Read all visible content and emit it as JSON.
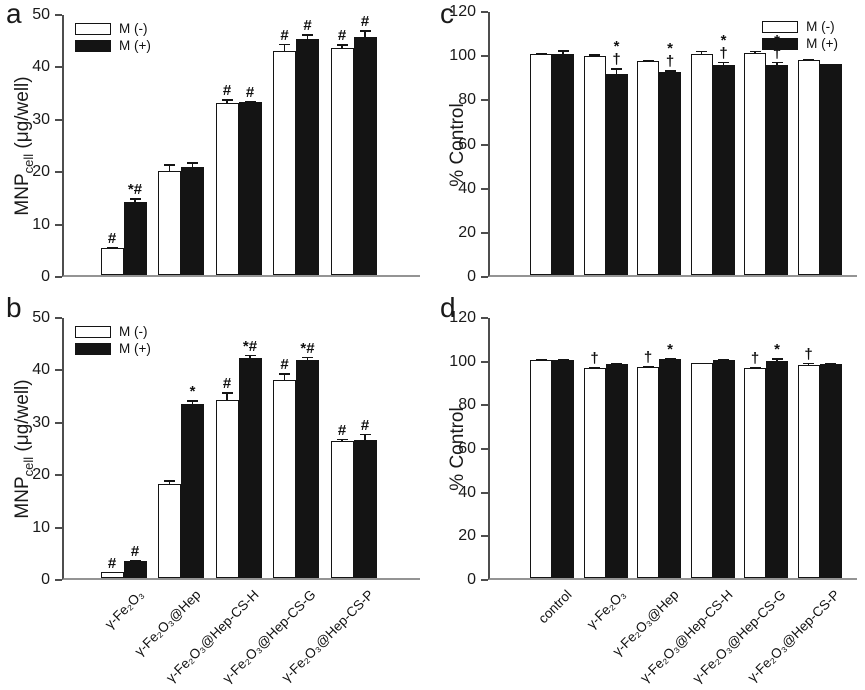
{
  "figure": {
    "background": "#ffffff"
  },
  "colors": {
    "bar_fill_neg": "#ffffff",
    "bar_fill_pos": "#141414",
    "bar_border": "#141414",
    "axis": "#4d4d4d",
    "baseline": "#949494",
    "text": "#1a1a1a"
  },
  "legend": {
    "items": [
      {
        "label": "M (-)",
        "style": "neg"
      },
      {
        "label": "M (+)",
        "style": "pos"
      }
    ]
  },
  "chart_data": [
    {
      "id": "a",
      "panel_label": "a",
      "type": "bar",
      "ylabel_pre": "MNP",
      "ylabel_sub": "cell",
      "ylabel_post": " (μg/well)",
      "ylim": [
        0,
        50
      ],
      "yticks": [
        0,
        10,
        20,
        30,
        40,
        50
      ],
      "grid": false,
      "legend_position": "top-left",
      "show_xlabels": false,
      "categories": [
        "γ-Fe₂O₃",
        "γ-Fe₂O₃@Hep",
        "γ-Fe₂O₃@Hep-CS-H",
        "γ-Fe₂O₃@Hep-CS-G",
        "γ-Fe₂O₃@Hep-CS-P"
      ],
      "series": [
        {
          "name": "M (-)",
          "style": "neg",
          "values": [
            5.2,
            19.8,
            32.8,
            42.8,
            43.3
          ],
          "errors": [
            0.4,
            1.5,
            1.0,
            1.5,
            0.9
          ],
          "annotations": [
            "#",
            "",
            "#",
            "#",
            "#"
          ]
        },
        {
          "name": "M (+)",
          "style": "pos",
          "values": [
            14.0,
            20.7,
            33.0,
            45.0,
            45.5
          ],
          "errors": [
            0.8,
            1.0,
            0.4,
            1.2,
            1.4
          ],
          "annotations": [
            "*#",
            "",
            "#",
            "#",
            "#"
          ]
        }
      ]
    },
    {
      "id": "b",
      "panel_label": "b",
      "type": "bar",
      "ylabel_pre": "MNP",
      "ylabel_sub": "cell",
      "ylabel_post": " (μg/well)",
      "ylim": [
        0,
        50
      ],
      "yticks": [
        0,
        10,
        20,
        30,
        40,
        50
      ],
      "grid": false,
      "legend_position": "top-left",
      "show_xlabels": true,
      "categories": [
        "γ-Fe₂O₃",
        "γ-Fe₂O₃@Hep",
        "γ-Fe₂O₃@Hep-CS-H",
        "γ-Fe₂O₃@Hep-CS-G",
        "γ-Fe₂O₃@Hep-CS-P"
      ],
      "series": [
        {
          "name": "M (-)",
          "style": "neg",
          "values": [
            1.1,
            18.0,
            34.0,
            37.8,
            26.2
          ],
          "errors": [
            0.3,
            0.9,
            1.6,
            1.5,
            0.6
          ],
          "annotations": [
            "#",
            "",
            "#",
            "#",
            "#"
          ]
        },
        {
          "name": "M (+)",
          "style": "pos",
          "values": [
            3.3,
            33.2,
            42.0,
            41.6,
            26.3
          ],
          "errors": [
            0.4,
            0.9,
            0.8,
            0.8,
            1.4
          ],
          "annotations": [
            "#",
            "*",
            "*#",
            "*#",
            "#"
          ]
        }
      ]
    },
    {
      "id": "c",
      "panel_label": "c",
      "type": "bar",
      "ylabel_pre": "% Control",
      "ylabel_sub": "",
      "ylabel_post": "",
      "ylim": [
        0,
        120
      ],
      "yticks": [
        0,
        20,
        40,
        60,
        80,
        100,
        120
      ],
      "grid": false,
      "legend_position": "top-right",
      "show_xlabels": false,
      "categories": [
        "control",
        "γ-Fe₂O₃",
        "γ-Fe₂O₃@Hep",
        "γ-Fe₂O₃@Hep-CS-H",
        "γ-Fe₂O₃@Hep-CS-G",
        "γ-Fe₂O₃@Hep-CS-P"
      ],
      "series": [
        {
          "name": "M (-)",
          "style": "neg",
          "values": [
            100,
            99,
            97,
            100,
            100.5,
            97.5
          ],
          "errors": [
            0.8,
            1.5,
            1.0,
            2.0,
            1.5,
            0.7
          ],
          "annotations": [
            "",
            "",
            "",
            "",
            "",
            ""
          ]
        },
        {
          "name": "M (+)",
          "style": "pos",
          "values": [
            100,
            91,
            92,
            95,
            95,
            95.5
          ],
          "errors": [
            2.2,
            3.0,
            1.2,
            2.0,
            2.0,
            0.6
          ],
          "annotations": [
            "",
            "*\n†",
            "*\n†",
            "*\n†",
            "*\n†",
            ""
          ]
        }
      ]
    },
    {
      "id": "d",
      "panel_label": "d",
      "type": "bar",
      "ylabel_pre": "% Control",
      "ylabel_sub": "",
      "ylabel_post": "",
      "ylim": [
        0,
        120
      ],
      "yticks": [
        0,
        20,
        40,
        60,
        80,
        100,
        120
      ],
      "grid": false,
      "legend_position": "none",
      "show_xlabels": true,
      "categories": [
        "control",
        "γ-Fe₂O₃",
        "γ-Fe₂O₃@Hep",
        "γ-Fe₂O₃@Hep-CS-H",
        "γ-Fe₂O₃@Hep-CS-G",
        "γ-Fe₂O₃@Hep-CS-P"
      ],
      "series": [
        {
          "name": "M (-)",
          "style": "neg",
          "values": [
            100,
            96,
            96.5,
            98.5,
            96,
            97.5
          ],
          "errors": [
            0.6,
            1.0,
            1.0,
            0.6,
            1.0,
            1.6
          ],
          "annotations": [
            "",
            "†",
            "†",
            "",
            "†",
            "†"
          ]
        },
        {
          "name": "M (+)",
          "style": "pos",
          "values": [
            100,
            98,
            100.5,
            100,
            99.5,
            98
          ],
          "errors": [
            0.6,
            0.8,
            0.8,
            0.6,
            1.6,
            0.8
          ],
          "annotations": [
            "",
            "",
            "*",
            "",
            "*",
            ""
          ]
        }
      ]
    }
  ]
}
